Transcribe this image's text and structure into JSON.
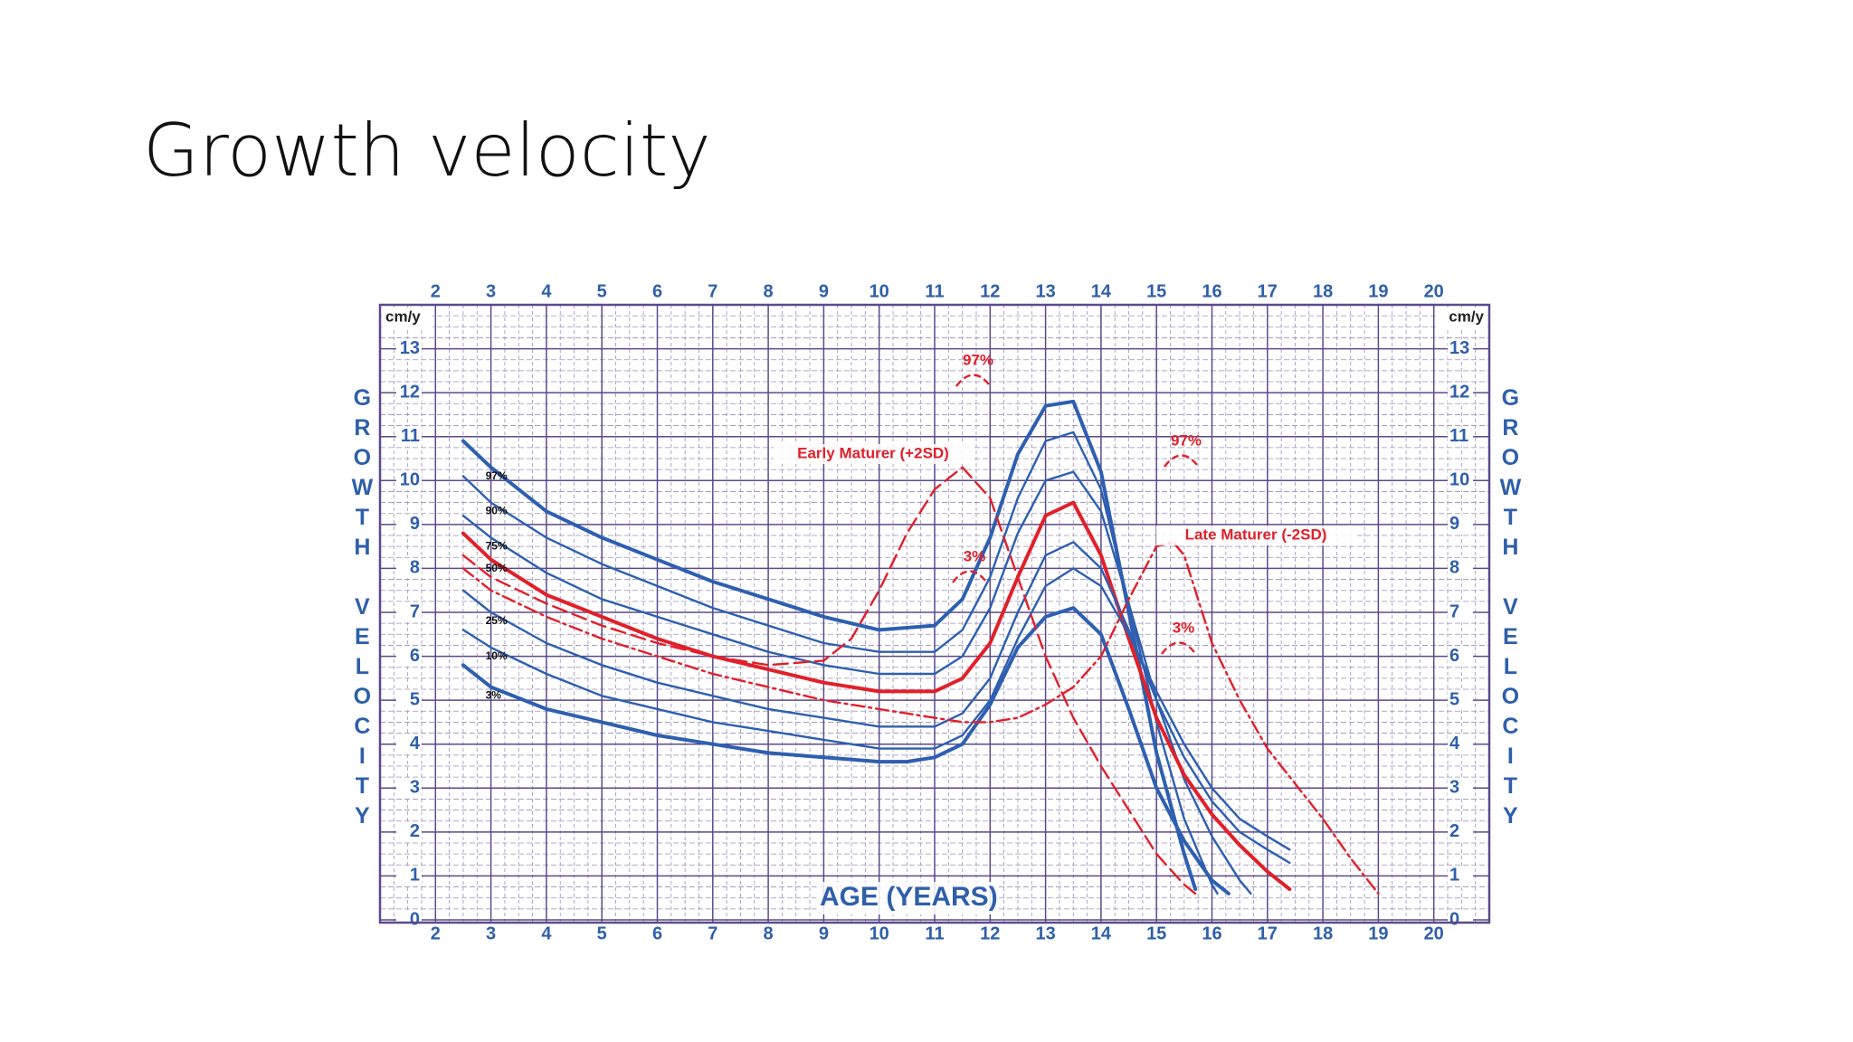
{
  "title": "Growth velocity",
  "chart_data": {
    "type": "line",
    "x_label": "AGE (YEARS)",
    "y_label": "GROWTH VELOCITY",
    "y_unit": "cm/y",
    "xlim": [
      1,
      21
    ],
    "ylim": [
      0,
      14
    ],
    "xticks": [
      2,
      3,
      4,
      5,
      6,
      7,
      8,
      9,
      10,
      11,
      12,
      13,
      14,
      15,
      16,
      17,
      18,
      19,
      20
    ],
    "yticks": [
      0,
      1,
      2,
      3,
      4,
      5,
      6,
      7,
      8,
      9,
      10,
      11,
      12,
      13
    ],
    "grid": true,
    "annotations": [
      "97%",
      "Early Maturer (+2SD)",
      "3%",
      "97%",
      "Late Maturer (-2SD)",
      "3%"
    ],
    "series": [
      {
        "name": "97%",
        "color": "#2e5fb0",
        "line_style": "solid",
        "x": [
          2.5,
          3,
          4,
          5,
          6,
          7,
          8,
          9,
          10,
          11,
          11.5,
          12,
          12.5,
          13,
          13.5,
          14,
          14.5,
          15,
          15.5,
          15.7
        ],
        "values": [
          10.9,
          10.3,
          9.3,
          8.7,
          8.2,
          7.7,
          7.3,
          6.9,
          6.6,
          6.7,
          7.3,
          8.7,
          10.6,
          11.7,
          11.8,
          10.2,
          7.0,
          3.8,
          1.5,
          0.7
        ]
      },
      {
        "name": "90%",
        "color": "#2e5fb0",
        "line_style": "solid",
        "x": [
          2.5,
          3,
          4,
          5,
          6,
          7,
          8,
          9,
          10,
          11,
          11.5,
          12,
          12.5,
          13,
          13.5,
          14,
          14.5,
          15,
          15.5,
          16,
          16.1
        ],
        "values": [
          10.1,
          9.5,
          8.7,
          8.1,
          7.6,
          7.1,
          6.7,
          6.3,
          6.1,
          6.1,
          6.6,
          7.8,
          9.6,
          10.9,
          11.1,
          9.8,
          7.2,
          4.5,
          2.3,
          0.8,
          0.6
        ]
      },
      {
        "name": "75%",
        "color": "#2e5fb0",
        "line_style": "solid",
        "x": [
          2.5,
          3,
          4,
          5,
          6,
          7,
          8,
          9,
          10,
          11,
          11.5,
          12,
          12.5,
          13,
          13.5,
          14,
          14.5,
          15,
          15.5,
          16,
          16.5,
          16.7
        ],
        "values": [
          9.2,
          8.7,
          7.9,
          7.3,
          6.9,
          6.5,
          6.1,
          5.8,
          5.6,
          5.6,
          6.0,
          7.1,
          8.8,
          10.0,
          10.2,
          9.3,
          7.2,
          5.0,
          3.2,
          1.9,
          0.9,
          0.6
        ]
      },
      {
        "name": "50%",
        "color": "#e0202a",
        "line_style": "solid",
        "x": [
          2.5,
          3,
          4,
          5,
          6,
          7,
          8,
          9,
          10,
          11,
          11.5,
          12,
          12.5,
          13,
          13.5,
          14,
          14.5,
          15,
          15.5,
          16,
          16.5,
          17,
          17.4
        ],
        "values": [
          8.8,
          8.2,
          7.4,
          6.9,
          6.4,
          6.0,
          5.7,
          5.4,
          5.2,
          5.2,
          5.5,
          6.3,
          7.8,
          9.2,
          9.5,
          8.3,
          6.4,
          4.6,
          3.3,
          2.4,
          1.7,
          1.1,
          0.7
        ]
      },
      {
        "name": "25%",
        "color": "#2e5fb0",
        "line_style": "solid",
        "x": [
          2.5,
          3,
          4,
          5,
          6,
          7,
          8,
          9,
          10,
          11,
          11.5,
          12,
          12.5,
          13,
          13.5,
          14,
          14.5,
          15,
          15.5,
          16,
          16.5,
          17,
          17.4
        ],
        "values": [
          7.5,
          7.0,
          6.3,
          5.8,
          5.4,
          5.1,
          4.8,
          4.6,
          4.4,
          4.4,
          4.7,
          5.5,
          7.0,
          8.3,
          8.6,
          8.0,
          6.6,
          5.0,
          3.7,
          2.7,
          2.0,
          1.6,
          1.3
        ]
      },
      {
        "name": "10%",
        "color": "#2e5fb0",
        "line_style": "solid",
        "x": [
          2.5,
          3,
          4,
          5,
          6,
          7,
          8,
          9,
          10,
          11,
          11.5,
          12,
          12.5,
          13,
          13.5,
          14,
          14.5,
          15,
          15.5,
          16,
          16.5,
          17,
          17.4
        ],
        "values": [
          6.6,
          6.2,
          5.6,
          5.1,
          4.8,
          4.5,
          4.3,
          4.1,
          3.9,
          3.9,
          4.2,
          5.0,
          6.4,
          7.6,
          8.0,
          7.6,
          6.5,
          5.2,
          4.0,
          3.0,
          2.3,
          1.9,
          1.6
        ]
      },
      {
        "name": "3%",
        "color": "#2e5fb0",
        "line_style": "solid",
        "x": [
          2.5,
          3,
          4,
          5,
          6,
          7,
          8,
          9,
          10,
          10.5,
          11,
          11.5,
          12,
          12.5,
          13,
          13.5,
          14,
          14.5,
          15,
          15.5,
          16,
          16.3
        ],
        "values": [
          5.8,
          5.3,
          4.8,
          4.5,
          4.2,
          4.0,
          3.8,
          3.7,
          3.6,
          3.6,
          3.7,
          4.0,
          4.9,
          6.2,
          6.9,
          7.1,
          6.5,
          4.8,
          3.0,
          1.8,
          0.9,
          0.6
        ]
      },
      {
        "name": "Early Maturer (+2SD)",
        "color": "#e0202a",
        "line_style": "dashed",
        "x": [
          2.5,
          3,
          4,
          5,
          6,
          7,
          8,
          9,
          9.5,
          10,
          10.5,
          11,
          11.5,
          12,
          12.5,
          13,
          13.5,
          14,
          14.5,
          15,
          15.5,
          15.7
        ],
        "values": [
          8.3,
          7.8,
          7.2,
          6.7,
          6.3,
          6.0,
          5.8,
          5.9,
          6.4,
          7.5,
          8.8,
          9.8,
          10.3,
          9.6,
          7.8,
          6.0,
          4.6,
          3.5,
          2.5,
          1.5,
          0.8,
          0.6
        ]
      },
      {
        "name": "Late Maturer (-2SD)",
        "color": "#e0202a",
        "line_style": "dashdot",
        "x": [
          2.5,
          3,
          4,
          5,
          6,
          7,
          8,
          9,
          10,
          11,
          11.5,
          12,
          12.5,
          13,
          13.5,
          14,
          14.5,
          15,
          15.3,
          15.5,
          16,
          16.5,
          17,
          17.5,
          18,
          18.5,
          19
        ],
        "values": [
          8.0,
          7.5,
          6.9,
          6.4,
          6.0,
          5.6,
          5.3,
          5.0,
          4.8,
          4.6,
          4.5,
          4.5,
          4.6,
          4.9,
          5.3,
          6.0,
          7.3,
          8.5,
          8.6,
          8.3,
          6.3,
          5.0,
          3.9,
          3.1,
          2.3,
          1.4,
          0.6
        ]
      }
    ]
  }
}
